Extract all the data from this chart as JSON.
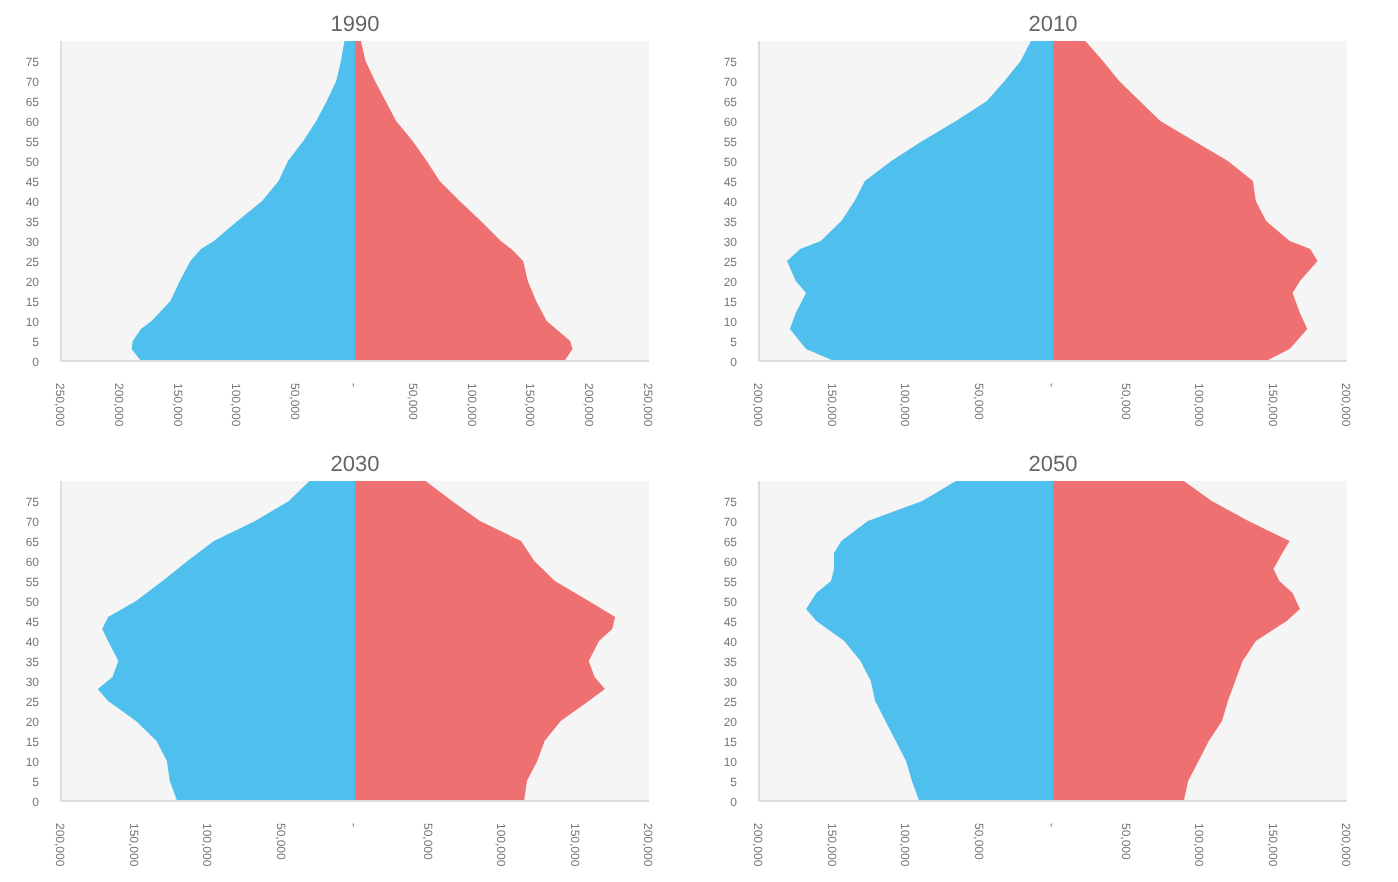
{
  "chart_data": [
    {
      "type": "area",
      "title": "1990",
      "orientation": "horizontal",
      "xlim": [
        -250000,
        250000
      ],
      "xticks": [
        {
          "value": -250000,
          "label": "250,000"
        },
        {
          "value": -200000,
          "label": "200,000"
        },
        {
          "value": -150000,
          "label": "150,000"
        },
        {
          "value": -100000,
          "label": "100,000"
        },
        {
          "value": -50000,
          "label": "50,000"
        },
        {
          "value": 0,
          "label": "-"
        },
        {
          "value": 50000,
          "label": "50,000"
        },
        {
          "value": 100000,
          "label": "100,000"
        },
        {
          "value": 150000,
          "label": "150,000"
        },
        {
          "value": 200000,
          "label": "200,000"
        },
        {
          "value": 250000,
          "label": "250,000"
        }
      ],
      "ylim": [
        0,
        80
      ],
      "yticks": [
        0,
        5,
        10,
        15,
        20,
        25,
        30,
        35,
        40,
        45,
        50,
        55,
        60,
        65,
        70,
        75
      ],
      "grid": false,
      "series": [
        {
          "color": "#4fc0ee",
          "x": [
            0,
            3,
            5,
            8,
            10,
            15,
            20,
            25,
            28,
            30,
            35,
            40,
            45,
            50,
            55,
            60,
            65,
            70,
            75,
            80
          ],
          "values": [
            -182000,
            -190000,
            -189000,
            -182000,
            -173000,
            -157000,
            -149000,
            -140000,
            -131000,
            -120000,
            -100000,
            -79000,
            -65000,
            -57000,
            -44000,
            -33000,
            -24000,
            -16000,
            -12000,
            -9000
          ]
        },
        {
          "color": "#ee7070",
          "x": [
            0,
            3,
            5,
            8,
            10,
            15,
            20,
            25,
            28,
            30,
            35,
            40,
            45,
            50,
            55,
            60,
            65,
            70,
            75,
            80
          ],
          "values": [
            178000,
            185000,
            183000,
            171000,
            163000,
            154000,
            147000,
            143000,
            133000,
            124000,
            107000,
            89000,
            72000,
            61000,
            49000,
            35000,
            26000,
            17000,
            9000,
            5000
          ]
        }
      ]
    },
    {
      "type": "area",
      "title": "2010",
      "orientation": "horizontal",
      "xlim": [
        -200000,
        200000
      ],
      "xticks": [
        {
          "value": -200000,
          "label": "200,000"
        },
        {
          "value": -150000,
          "label": "150,000"
        },
        {
          "value": -100000,
          "label": "100,000"
        },
        {
          "value": -50000,
          "label": "50,000"
        },
        {
          "value": 0,
          "label": "-"
        },
        {
          "value": 50000,
          "label": "50,000"
        },
        {
          "value": 100000,
          "label": "100,000"
        },
        {
          "value": 150000,
          "label": "150,000"
        },
        {
          "value": 200000,
          "label": "200,000"
        }
      ],
      "ylim": [
        0,
        80
      ],
      "yticks": [
        0,
        5,
        10,
        15,
        20,
        25,
        30,
        35,
        40,
        45,
        50,
        55,
        60,
        65,
        70,
        75
      ],
      "grid": false,
      "series": [
        {
          "color": "#4fc0ee",
          "x": [
            0,
            3,
            8,
            12,
            17,
            20,
            25,
            28,
            30,
            35,
            40,
            45,
            50,
            55,
            60,
            65,
            70,
            75,
            80
          ],
          "values": [
            -149000,
            -168000,
            -179000,
            -175000,
            -168000,
            -175000,
            -181000,
            -172000,
            -158000,
            -144000,
            -135000,
            -128000,
            -110000,
            -89000,
            -66000,
            -45000,
            -33000,
            -22000,
            -15000
          ]
        },
        {
          "color": "#ee7070",
          "x": [
            0,
            3,
            8,
            12,
            17,
            20,
            25,
            28,
            30,
            35,
            40,
            45,
            50,
            55,
            60,
            65,
            70,
            75,
            80
          ],
          "values": [
            145000,
            161000,
            173000,
            168000,
            163000,
            168000,
            180000,
            175000,
            161000,
            145000,
            138000,
            136000,
            119000,
            96000,
            73000,
            59000,
            45000,
            34000,
            22000
          ]
        }
      ]
    },
    {
      "type": "area",
      "title": "2030",
      "orientation": "horizontal",
      "xlim": [
        -200000,
        200000
      ],
      "xticks": [
        {
          "value": -200000,
          "label": "200,000"
        },
        {
          "value": -150000,
          "label": "150,000"
        },
        {
          "value": -100000,
          "label": "100,000"
        },
        {
          "value": -50000,
          "label": "50,000"
        },
        {
          "value": 0,
          "label": "-"
        },
        {
          "value": 50000,
          "label": "50,000"
        },
        {
          "value": 100000,
          "label": "100,000"
        },
        {
          "value": 150000,
          "label": "150,000"
        },
        {
          "value": 200000,
          "label": "200,000"
        }
      ],
      "ylim": [
        0,
        80
      ],
      "yticks": [
        0,
        5,
        10,
        15,
        20,
        25,
        30,
        35,
        40,
        45,
        50,
        55,
        60,
        65,
        70,
        75
      ],
      "grid": false,
      "series": [
        {
          "color": "#4fc0ee",
          "x": [
            0,
            5,
            10,
            15,
            20,
            25,
            28,
            31,
            35,
            40,
            43,
            46,
            50,
            55,
            60,
            65,
            70,
            75,
            80
          ],
          "values": [
            -121000,
            -126000,
            -128000,
            -135000,
            -149000,
            -168000,
            -175000,
            -165000,
            -161000,
            -168000,
            -172000,
            -168000,
            -149000,
            -131000,
            -114000,
            -96000,
            -68000,
            -45000,
            -31000
          ]
        },
        {
          "color": "#ee7070",
          "x": [
            0,
            5,
            10,
            15,
            20,
            25,
            28,
            31,
            35,
            40,
            43,
            46,
            50,
            55,
            60,
            65,
            70,
            75,
            80
          ],
          "values": [
            115000,
            117000,
            124000,
            129000,
            140000,
            159000,
            170000,
            163000,
            159000,
            166000,
            175000,
            177000,
            159000,
            136000,
            122000,
            113000,
            85000,
            66000,
            48000
          ]
        }
      ]
    },
    {
      "type": "area",
      "title": "2050",
      "orientation": "horizontal",
      "xlim": [
        -200000,
        200000
      ],
      "xticks": [
        {
          "value": -200000,
          "label": "200,000"
        },
        {
          "value": -150000,
          "label": "150,000"
        },
        {
          "value": -100000,
          "label": "100,000"
        },
        {
          "value": -50000,
          "label": "50,000"
        },
        {
          "value": 0,
          "label": "-"
        },
        {
          "value": 50000,
          "label": "50,000"
        },
        {
          "value": 100000,
          "label": "100,000"
        },
        {
          "value": 150000,
          "label": "150,000"
        },
        {
          "value": 200000,
          "label": "200,000"
        }
      ],
      "ylim": [
        0,
        80
      ],
      "yticks": [
        0,
        5,
        10,
        15,
        20,
        25,
        30,
        35,
        40,
        45,
        50,
        55,
        60,
        65,
        70,
        75
      ],
      "grid": false,
      "series": [
        {
          "color": "#4fc0ee",
          "x": [
            0,
            5,
            10,
            15,
            20,
            25,
            30,
            35,
            40,
            45,
            48,
            52,
            55,
            58,
            62,
            65,
            70,
            75,
            80
          ],
          "values": [
            -91000,
            -96000,
            -100000,
            -107000,
            -114000,
            -121000,
            -124000,
            -131000,
            -142000,
            -161000,
            -168000,
            -161000,
            -151000,
            -149000,
            -149000,
            -144000,
            -126000,
            -89000,
            -66000
          ]
        },
        {
          "color": "#ee7070",
          "x": [
            0,
            5,
            10,
            15,
            20,
            25,
            30,
            35,
            40,
            45,
            48,
            52,
            55,
            58,
            62,
            65,
            70,
            75,
            80
          ],
          "values": [
            89000,
            92000,
            99000,
            106000,
            115000,
            119000,
            124000,
            129000,
            138000,
            159000,
            168000,
            163000,
            154000,
            150000,
            156000,
            161000,
            133000,
            108000,
            89000
          ]
        }
      ]
    }
  ]
}
